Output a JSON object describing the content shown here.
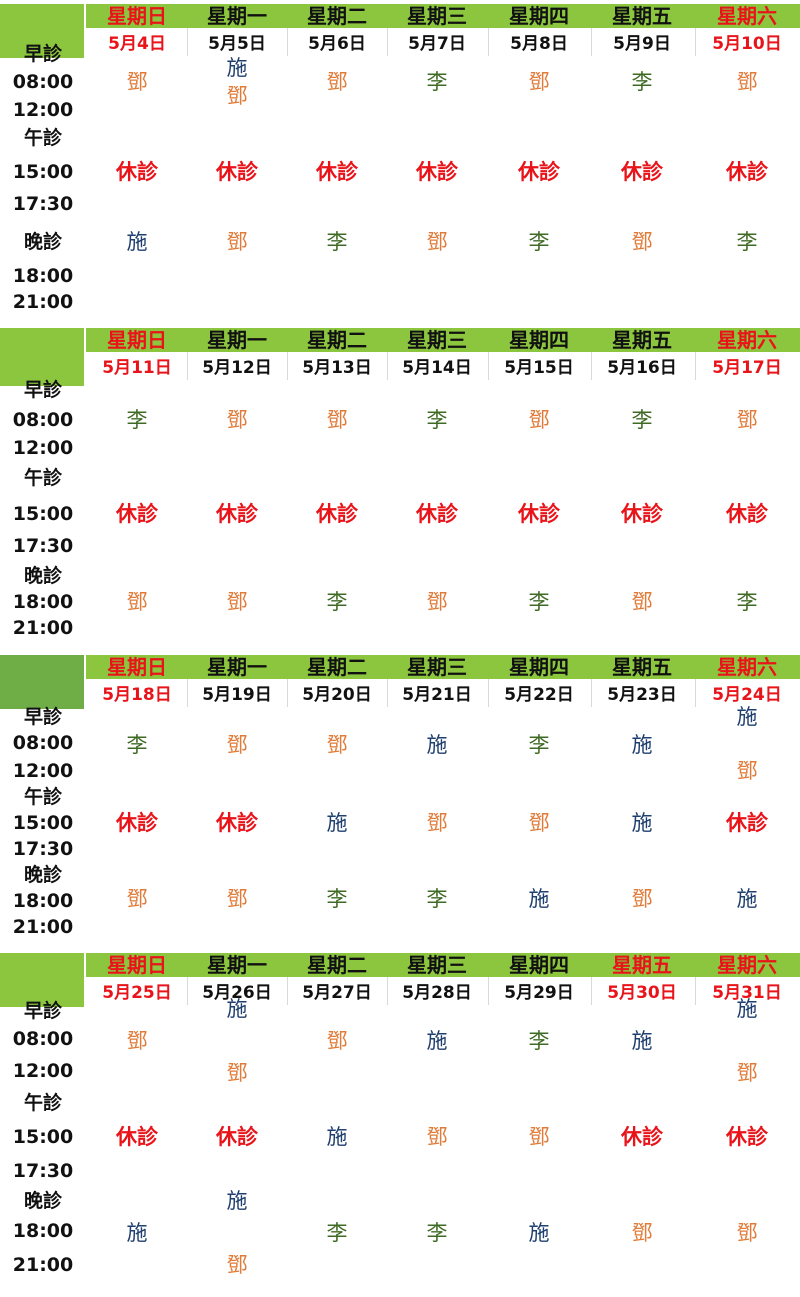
{
  "weekdays": [
    {
      "label": "星期日",
      "weekend": true
    },
    {
      "label": "星期一",
      "weekend": false
    },
    {
      "label": "星期二",
      "weekend": false
    },
    {
      "label": "星期三",
      "weekend": false
    },
    {
      "label": "星期四",
      "weekend": false
    },
    {
      "label": "星期五",
      "weekend": false
    },
    {
      "label": "星期六",
      "weekend": true
    }
  ],
  "colors": {
    "header_band": "#8cc63f",
    "holiday_red": "#e8141a",
    "deng": "#e07b39",
    "li": "#3f6a24",
    "shi": "#1f3f6e"
  },
  "doctor_color_key": {
    "鄧": "deng",
    "李": "li",
    "施": "shi",
    "休診": "off"
  },
  "weeks": [
    {
      "red_day_labels": [
        0,
        6
      ],
      "dates": [
        {
          "text": "5月4日",
          "red": true
        },
        {
          "text": "5月5日",
          "red": false
        },
        {
          "text": "5月6日",
          "red": false
        },
        {
          "text": "5月7日",
          "red": false
        },
        {
          "text": "5月8日",
          "red": false
        },
        {
          "text": "5月9日",
          "red": false
        },
        {
          "text": "5月10日",
          "red": true
        }
      ],
      "time_labels": [
        "早診",
        "08:00",
        "12:00",
        "午診",
        "15:00",
        "17:30",
        "晚診",
        "18:00",
        "21:00"
      ],
      "morning": [
        [
          "鄧"
        ],
        [
          "施",
          "鄧"
        ],
        [
          "鄧"
        ],
        [
          "李"
        ],
        [
          "鄧"
        ],
        [
          "李"
        ],
        [
          "鄧"
        ]
      ],
      "afternoon": [
        [
          "休診"
        ],
        [
          "休診"
        ],
        [
          "休診"
        ],
        [
          "休診"
        ],
        [
          "休診"
        ],
        [
          "休診"
        ],
        [
          "休診"
        ]
      ],
      "evening": [
        [
          "施"
        ],
        [
          "鄧"
        ],
        [
          "李"
        ],
        [
          "鄧"
        ],
        [
          "李"
        ],
        [
          "鄧"
        ],
        [
          "李"
        ]
      ]
    },
    {
      "red_day_labels": [
        0,
        6
      ],
      "dates": [
        {
          "text": "5月11日",
          "red": true
        },
        {
          "text": "5月12日",
          "red": false
        },
        {
          "text": "5月13日",
          "red": false
        },
        {
          "text": "5月14日",
          "red": false
        },
        {
          "text": "5月15日",
          "red": false
        },
        {
          "text": "5月16日",
          "red": false
        },
        {
          "text": "5月17日",
          "red": true
        }
      ],
      "time_labels": [
        "早診",
        "08:00",
        "12:00",
        "午診",
        "15:00",
        "17:30",
        "晚診",
        "18:00",
        "21:00"
      ],
      "morning": [
        [
          "李"
        ],
        [
          "鄧"
        ],
        [
          "鄧"
        ],
        [
          "李"
        ],
        [
          "鄧"
        ],
        [
          "李"
        ],
        [
          "鄧"
        ]
      ],
      "afternoon": [
        [
          "休診"
        ],
        [
          "休診"
        ],
        [
          "休診"
        ],
        [
          "休診"
        ],
        [
          "休診"
        ],
        [
          "休診"
        ],
        [
          "休診"
        ]
      ],
      "evening": [
        [
          "鄧"
        ],
        [
          "鄧"
        ],
        [
          "李"
        ],
        [
          "鄧"
        ],
        [
          "李"
        ],
        [
          "鄧"
        ],
        [
          "李"
        ]
      ]
    },
    {
      "red_day_labels": [
        0,
        6
      ],
      "dates": [
        {
          "text": "5月18日",
          "red": true
        },
        {
          "text": "5月19日",
          "red": false
        },
        {
          "text": "5月20日",
          "red": false
        },
        {
          "text": "5月21日",
          "red": false
        },
        {
          "text": "5月22日",
          "red": false
        },
        {
          "text": "5月23日",
          "red": false
        },
        {
          "text": "5月24日",
          "red": true
        }
      ],
      "time_labels": [
        "早診",
        "08:00",
        "12:00",
        "午診",
        "15:00",
        "17:30",
        "晚診",
        "18:00",
        "21:00"
      ],
      "morning": [
        [
          "李"
        ],
        [
          "鄧"
        ],
        [
          "鄧"
        ],
        [
          "施"
        ],
        [
          "李"
        ],
        [
          "施"
        ],
        [
          "施",
          "鄧"
        ]
      ],
      "afternoon": [
        [
          "休診"
        ],
        [
          "休診"
        ],
        [
          "施"
        ],
        [
          "鄧"
        ],
        [
          "鄧"
        ],
        [
          "施"
        ],
        [
          "休診"
        ]
      ],
      "evening": [
        [
          "鄧"
        ],
        [
          "鄧"
        ],
        [
          "李"
        ],
        [
          "李"
        ],
        [
          "施"
        ],
        [
          "鄧"
        ],
        [
          "施"
        ]
      ]
    },
    {
      "red_day_labels": [
        0,
        5,
        6
      ],
      "dates": [
        {
          "text": "5月25日",
          "red": true
        },
        {
          "text": "5月26日",
          "red": false
        },
        {
          "text": "5月27日",
          "red": false
        },
        {
          "text": "5月28日",
          "red": false
        },
        {
          "text": "5月29日",
          "red": false
        },
        {
          "text": "5月30日",
          "red": true
        },
        {
          "text": "5月31日",
          "red": true
        }
      ],
      "time_labels": [
        "早診",
        "08:00",
        "12:00",
        "午診",
        "15:00",
        "17:30",
        "晚診",
        "18:00",
        "21:00"
      ],
      "morning": [
        [
          "鄧"
        ],
        [
          "施",
          "鄧"
        ],
        [
          "鄧"
        ],
        [
          "施"
        ],
        [
          "李"
        ],
        [
          "施"
        ],
        [
          "施",
          "鄧"
        ]
      ],
      "afternoon": [
        [
          "休診"
        ],
        [
          "休診"
        ],
        [
          "施"
        ],
        [
          "鄧"
        ],
        [
          "鄧"
        ],
        [
          "休診"
        ],
        [
          "休診"
        ]
      ],
      "evening": [
        [
          "施"
        ],
        [
          "施",
          "鄧"
        ],
        [
          "李"
        ],
        [
          "李"
        ],
        [
          "施"
        ],
        [
          "鄧"
        ],
        [
          "鄧"
        ]
      ]
    }
  ]
}
